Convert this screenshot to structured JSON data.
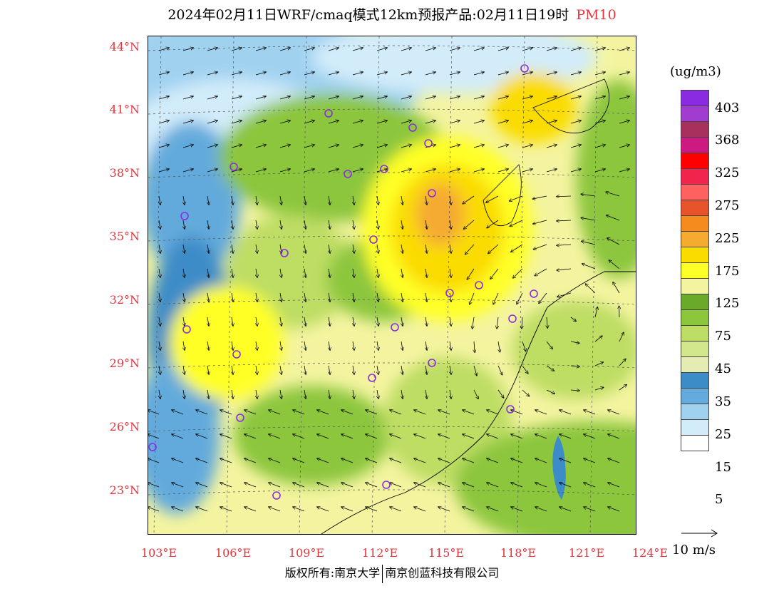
{
  "title": {
    "main": "2024年02月11日WRF/cmaq模式12km预报产品:02月11日19时",
    "species": "PM10"
  },
  "lat_labels": [
    "44°N",
    "41°N",
    "38°N",
    "35°N",
    "32°N",
    "29°N",
    "26°N",
    "23°N"
  ],
  "lon_labels": [
    "103°E",
    "106°E",
    "109°E",
    "112°E",
    "115°E",
    "118°E",
    "121°E",
    "124°E"
  ],
  "colorbar": {
    "unit": "(ug/m3)",
    "colors": [
      "#8a2be2",
      "#a03ccf",
      "#a8305c",
      "#cc1a82",
      "#ff0000",
      "#f0244c",
      "#ff6060",
      "#e8532b",
      "#f58a1e",
      "#f5aa30",
      "#fadc00",
      "#ffff28",
      "#f4f4a0",
      "#6aaa2a",
      "#8cc63c",
      "#bedd64",
      "#d2e68c",
      "#e4ecb4",
      "#3c8cc8",
      "#64aadc",
      "#a0d2f0",
      "#d2ecfa",
      "#ffffff"
    ],
    "labels": [
      "403",
      "368",
      "325",
      "275",
      "225",
      "175",
      "125",
      "75",
      "45",
      "35",
      "25",
      "15",
      "5"
    ]
  },
  "wind_reference": {
    "label": "10 m/s"
  },
  "copyright": {
    "left": "版权所有:南京大学",
    "right": "南京创蓝科技有限公司"
  }
}
